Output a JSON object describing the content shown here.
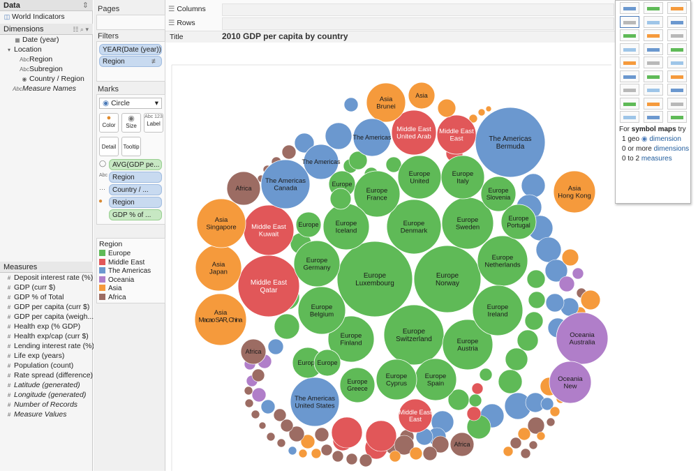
{
  "data_pane": {
    "title": "Data",
    "source": "World Indicators",
    "dimensions_header": "Dimensions",
    "dimensions": [
      {
        "label": "Date (year)",
        "icon": "calendar-icon",
        "indent": 1
      },
      {
        "label": "Location",
        "icon": "hierarchy-icon",
        "indent": 1
      },
      {
        "label": "Region",
        "icon": "abc-icon",
        "indent": 2
      },
      {
        "label": "Subregion",
        "icon": "abc-icon",
        "indent": 2
      },
      {
        "label": "Country / Region",
        "icon": "globe-icon",
        "indent": 2
      },
      {
        "label": "Measure Names",
        "icon": "abc-icon",
        "indent": 1,
        "italic": true
      }
    ],
    "measures_header": "Measures",
    "measures": [
      {
        "label": "Deposit interest rate (%)"
      },
      {
        "label": "GDP (curr $)"
      },
      {
        "label": "GDP % of Total"
      },
      {
        "label": "GDP per capita (curr $)"
      },
      {
        "label": "GDP per capita (weigh..."
      },
      {
        "label": "Health exp (% GDP)"
      },
      {
        "label": "Health exp/cap (curr $)"
      },
      {
        "label": "Lending interest rate (%)"
      },
      {
        "label": "Life exp (years)"
      },
      {
        "label": "Population (count)"
      },
      {
        "label": "Rate spread (difference)"
      },
      {
        "label": "Latitude (generated)",
        "italic": true
      },
      {
        "label": "Longitude (generated)",
        "italic": true
      },
      {
        "label": "Number of Records",
        "italic": true
      },
      {
        "label": "Measure Values",
        "italic": true
      }
    ]
  },
  "pages_label": "Pages",
  "filters": {
    "label": "Filters",
    "items": [
      "YEAR(Date (year)): ...",
      "Region"
    ]
  },
  "marks": {
    "label": "Marks",
    "type": "Circle",
    "buttons": [
      "Color",
      "Size",
      "Label",
      "Detail",
      "Tooltip"
    ],
    "pills": [
      {
        "text": "AVG(GDP pe...",
        "kind": "green",
        "icon": "size-icon"
      },
      {
        "text": "Region",
        "kind": "blue",
        "icon": "label-icon"
      },
      {
        "text": "Country / ...",
        "kind": "blue",
        "icon": "detail-icon"
      },
      {
        "text": "Region",
        "kind": "blue",
        "icon": "color-icon"
      },
      {
        "text": "GDP % of ...",
        "kind": "green",
        "icon": "tooltip-icon"
      }
    ]
  },
  "legend": {
    "title": "Region",
    "items": [
      {
        "label": "Europe",
        "color": "#5fba57"
      },
      {
        "label": "Middle East",
        "color": "#e15759"
      },
      {
        "label": "The Americas",
        "color": "#6b98cf"
      },
      {
        "label": "Oceania",
        "color": "#b07ec9"
      },
      {
        "label": "Asia",
        "color": "#f59a3c"
      },
      {
        "label": "Africa",
        "color": "#9c6c63"
      }
    ]
  },
  "shelves": {
    "columns_label": "Columns",
    "rows_label": "Rows"
  },
  "sheet": {
    "title_label": "Title",
    "title": "2010 GDP per capita by country"
  },
  "showme": {
    "hint_prefix": "For ",
    "hint_bold": "symbol maps",
    "hint_suffix": " try",
    "lines": [
      {
        "pre": "1 geo ",
        "highlight": "dimension"
      },
      {
        "pre": "0 or more ",
        "highlight": "dimensions"
      },
      {
        "pre": "0 to 2 ",
        "highlight": "measures"
      }
    ]
  },
  "bubbles": [
    {
      "region": "Europe",
      "country": "Luxembourg"
    },
    {
      "region": "Europe",
      "country": "Norway"
    },
    {
      "region": "Middle East",
      "country": "Qatar"
    },
    {
      "region": "The Americas",
      "country": "Bermuda"
    },
    {
      "region": "Europe",
      "country": "Switzerland"
    },
    {
      "region": "Europe",
      "country": "Denmark"
    },
    {
      "region": "Middle East",
      "country": "Kuwait"
    },
    {
      "region": "Europe",
      "country": "Sweden"
    },
    {
      "region": "Europe",
      "country": "Netherlands"
    },
    {
      "region": "Europe",
      "country": "Austria"
    },
    {
      "region": "Europe",
      "country": "Ireland"
    },
    {
      "region": "Europe",
      "country": "Finland"
    },
    {
      "region": "Europe",
      "country": "Belgium"
    },
    {
      "region": "Europe",
      "country": "Germany"
    },
    {
      "region": "Europe",
      "country": "France"
    },
    {
      "region": "Europe",
      "country": "Iceland"
    },
    {
      "region": "Europe",
      "country": "United"
    },
    {
      "region": "Europe",
      "country": "Italy"
    },
    {
      "region": "Oceania",
      "country": "Australia"
    },
    {
      "region": "The Americas",
      "country": "United States"
    },
    {
      "region": "Asia",
      "country": "Macao SAR, China"
    },
    {
      "region": "Asia",
      "country": "Japan"
    },
    {
      "region": "Asia",
      "country": "Singapore"
    },
    {
      "region": "The Americas",
      "country": "Canada"
    },
    {
      "region": "Middle East",
      "country": "United Arab"
    },
    {
      "region": "Europe",
      "country": "Spain"
    },
    {
      "region": "Europe",
      "country": "Cyprus"
    },
    {
      "region": "Europe",
      "country": "Greece"
    },
    {
      "region": "Europe",
      "country": "Slovenia"
    },
    {
      "region": "Europe",
      "country": "Portugal"
    },
    {
      "region": "Oceania",
      "country": "New"
    },
    {
      "region": "Asia",
      "country": "Hong Kong"
    },
    {
      "region": "Asia",
      "country": "Brunei"
    },
    {
      "region": "Middle East",
      "country": "East"
    },
    {
      "region": "Middle East",
      "country": "East"
    },
    {
      "region": "The Americas",
      "country": "The Americas"
    },
    {
      "region": "The Americas",
      "country": "The Americas"
    },
    {
      "region": "Africa",
      "country": "Africa"
    },
    {
      "region": "Africa",
      "country": "Africa"
    },
    {
      "region": "Africa",
      "country": "Africa"
    },
    {
      "region": "Asia",
      "country": "Asia"
    },
    {
      "region": "Asia",
      "country": "Asia"
    },
    {
      "region": "Asia",
      "country": "Asia"
    },
    {
      "region": "Asia",
      "country": "Asia"
    },
    {
      "region": "Europe",
      "country": "Europe"
    },
    {
      "region": "Europe",
      "country": "Europe"
    },
    {
      "region": "Europe",
      "country": "Europe"
    },
    {
      "region": "Europe",
      "country": "Europe"
    },
    {
      "region": "Europe",
      "country": "Europe"
    }
  ]
}
